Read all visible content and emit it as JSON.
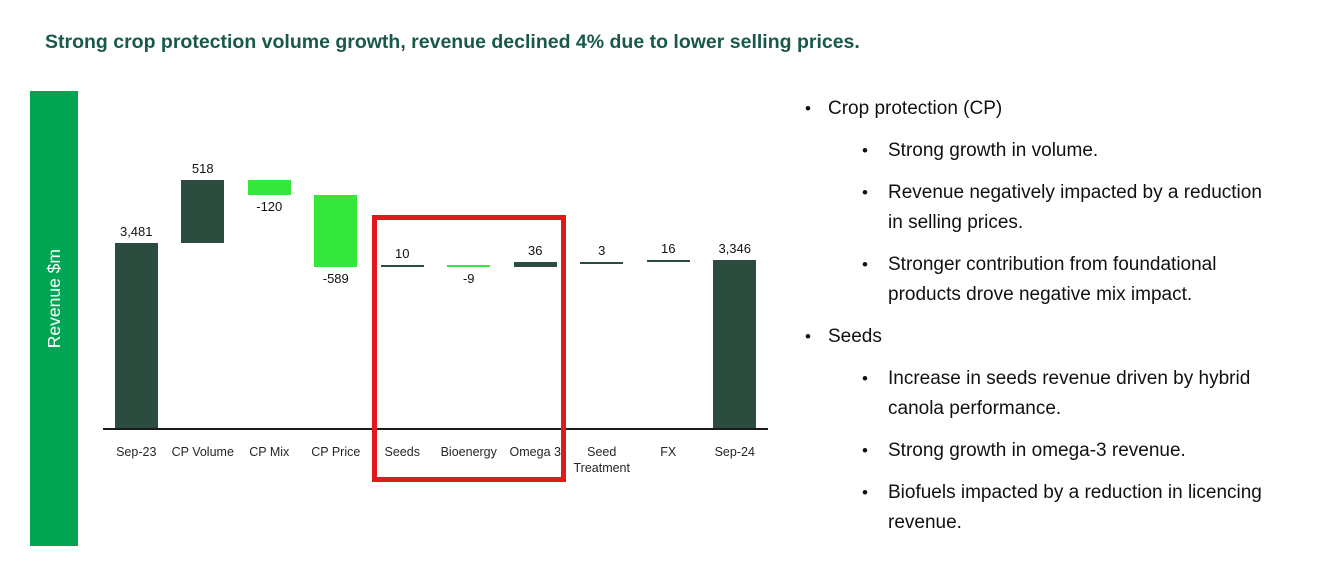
{
  "slide": {
    "title": "Strong crop protection volume growth, revenue declined 4% due to lower selling prices."
  },
  "chart_data": {
    "type": "bar",
    "subtype": "waterfall",
    "title": "",
    "xlabel": "",
    "ylabel": "Revenue $m",
    "categories": [
      "Sep-23",
      "CP Volume",
      "CP Mix",
      "CP Price",
      "Seeds",
      "Bioenergy",
      "Omega 3",
      "Seed Treatment",
      "FX",
      "Sep-24"
    ],
    "values": [
      3481,
      518,
      -120,
      -589,
      10,
      -9,
      36,
      3,
      16,
      3346
    ],
    "bar_kinds": [
      "total",
      "delta",
      "delta",
      "delta",
      "delta",
      "delta",
      "delta",
      "delta",
      "delta",
      "total"
    ],
    "bar_labels": [
      "3,481",
      "518",
      "-120",
      "-589",
      "10",
      "-9",
      "36",
      "3",
      "16",
      "3,346"
    ],
    "ylim": [
      1950,
      4740
    ],
    "grid": false,
    "legend": "none",
    "axis_ticks_visible": false,
    "colors": {
      "positive_and_total": "#2b4c3e",
      "negative": "#35e73a",
      "ylabel_band": "#00a553",
      "axis_line": "#1a1a1a",
      "highlight_border": "#e0191d",
      "title_text": "#18594a"
    },
    "highlight": {
      "from": "Seeds",
      "to": "Omega 3"
    }
  },
  "bullets": [
    {
      "label": "Crop protection (CP)",
      "sub": [
        "Strong growth in volume.",
        "Revenue negatively impacted by a reduction in selling prices.",
        "Stronger contribution from foundational products drove negative mix impact."
      ]
    },
    {
      "label": "Seeds",
      "sub": [
        "Increase in seeds revenue driven by hybrid canola performance.",
        "Strong growth in omega-3 revenue.",
        "Biofuels impacted by a reduction in licencing revenue."
      ]
    }
  ]
}
